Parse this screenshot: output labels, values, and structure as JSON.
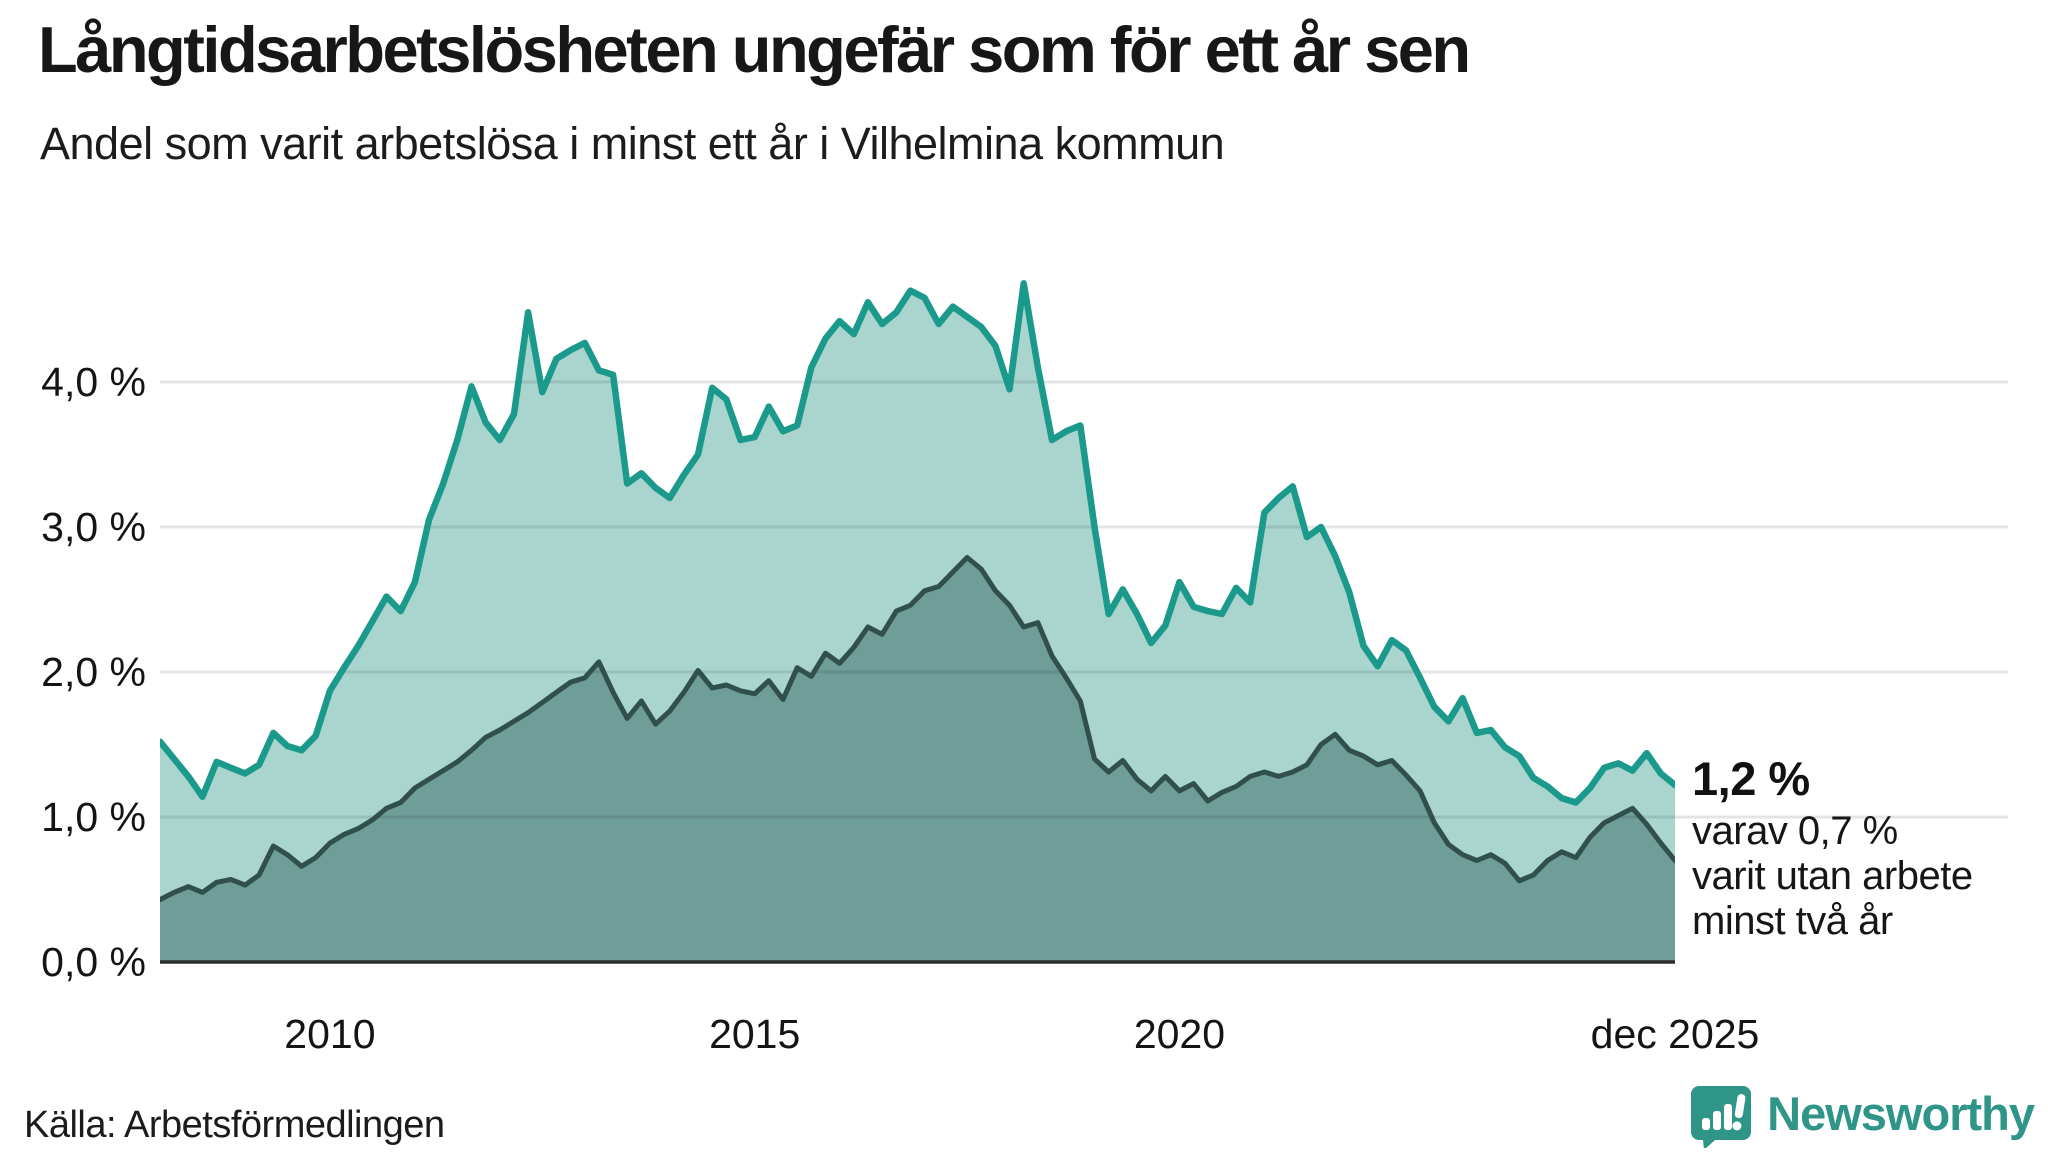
{
  "title": "Långtidsarbetslösheten ungefär som för ett år sen",
  "subtitle": "Andel som varit arbetslösa i minst ett år i Vilhelmina kommun",
  "source": "Källa: Arbetsförmedlingen",
  "brand": {
    "name": "Newsworthy"
  },
  "annotation": {
    "value": "1,2 %",
    "lines": [
      "varav 0,7 %",
      "varit utan arbete",
      "minst två år"
    ]
  },
  "colors": {
    "accent_teal_line": "#1b9a8c",
    "area_light_teal": "#a9d5ce",
    "area_dark_teal": "#6f9d97",
    "dark_line": "#31504b",
    "baseline": "#2c2c2c",
    "gridline": "rgba(40,50,60,0.13)",
    "brand_teal": "#2f9588",
    "text": "#1a1a1a"
  },
  "chart_data": {
    "type": "area",
    "title": "Långtidsarbetslösheten ungefär som för ett år sen",
    "subtitle": "Andel som varit arbetslösa i minst ett år i Vilhelmina kommun",
    "unit": "%",
    "x_start": 2008.0,
    "x_step_years": 0.1666667,
    "x_end": 2025.8333,
    "ylim": [
      0,
      4.8
    ],
    "grid": true,
    "legend_position": "none",
    "y_ticks": [
      {
        "value": 0,
        "label": "0,0 %"
      },
      {
        "value": 1,
        "label": "1,0 %"
      },
      {
        "value": 2,
        "label": "2,0 %"
      },
      {
        "value": 3,
        "label": "3,0 %"
      },
      {
        "value": 4,
        "label": "4,0 %"
      }
    ],
    "x_ticks": [
      {
        "value": 2010,
        "label": "2010"
      },
      {
        "value": 2015,
        "label": "2015"
      },
      {
        "value": 2020,
        "label": "2020"
      },
      {
        "value": 2025.8333,
        "label": "dec 2025"
      }
    ],
    "end_labels": {
      "total": "1,2 %",
      "two_years": "0,7 %"
    },
    "series": [
      {
        "name": "Andel arbetslösa minst ett år",
        "line_color": "#1b9a8c",
        "fill_color": "#a9d5ce",
        "values": [
          1.52,
          1.4,
          1.28,
          1.14,
          1.38,
          1.34,
          1.3,
          1.36,
          1.58,
          1.49,
          1.46,
          1.56,
          1.87,
          2.03,
          2.18,
          2.35,
          2.52,
          2.42,
          2.62,
          3.05,
          3.3,
          3.6,
          3.97,
          3.72,
          3.6,
          3.78,
          4.48,
          3.93,
          4.16,
          4.22,
          4.27,
          4.08,
          4.05,
          3.3,
          3.37,
          3.27,
          3.2,
          3.36,
          3.5,
          3.96,
          3.88,
          3.6,
          3.62,
          3.83,
          3.66,
          3.7,
          4.1,
          4.3,
          4.42,
          4.33,
          4.55,
          4.4,
          4.48,
          4.63,
          4.58,
          4.4,
          4.52,
          4.45,
          4.38,
          4.25,
          3.95,
          4.68,
          4.1,
          3.6,
          3.66,
          3.7,
          3.0,
          2.4,
          2.57,
          2.4,
          2.2,
          2.32,
          2.62,
          2.45,
          2.42,
          2.4,
          2.58,
          2.48,
          3.1,
          3.2,
          3.28,
          2.93,
          3.0,
          2.8,
          2.55,
          2.18,
          2.04,
          2.22,
          2.15,
          1.96,
          1.76,
          1.66,
          1.82,
          1.58,
          1.6,
          1.48,
          1.42,
          1.27,
          1.21,
          1.13,
          1.1,
          1.2,
          1.34,
          1.37,
          1.32,
          1.44,
          1.3,
          1.22
        ]
      },
      {
        "name": "varav utan arbete minst två år",
        "line_color": "#31504b",
        "fill_color": "#6f9d97",
        "values": [
          0.43,
          0.48,
          0.52,
          0.48,
          0.55,
          0.57,
          0.53,
          0.6,
          0.8,
          0.74,
          0.66,
          0.72,
          0.82,
          0.88,
          0.92,
          0.98,
          1.06,
          1.1,
          1.2,
          1.26,
          1.32,
          1.38,
          1.46,
          1.55,
          1.6,
          1.66,
          1.72,
          1.79,
          1.86,
          1.93,
          1.96,
          2.07,
          1.86,
          1.68,
          1.8,
          1.64,
          1.73,
          1.86,
          2.01,
          1.89,
          1.91,
          1.87,
          1.85,
          1.94,
          1.81,
          2.03,
          1.97,
          2.13,
          2.06,
          2.17,
          2.31,
          2.26,
          2.42,
          2.46,
          2.56,
          2.59,
          2.69,
          2.79,
          2.71,
          2.56,
          2.46,
          2.31,
          2.34,
          2.11,
          1.96,
          1.8,
          1.4,
          1.31,
          1.39,
          1.26,
          1.18,
          1.28,
          1.18,
          1.23,
          1.11,
          1.17,
          1.21,
          1.28,
          1.31,
          1.28,
          1.31,
          1.36,
          1.5,
          1.57,
          1.46,
          1.42,
          1.36,
          1.39,
          1.29,
          1.18,
          0.96,
          0.81,
          0.74,
          0.7,
          0.74,
          0.68,
          0.56,
          0.6,
          0.7,
          0.76,
          0.72,
          0.86,
          0.96,
          1.01,
          1.06,
          0.95,
          0.82,
          0.7
        ]
      }
    ]
  }
}
